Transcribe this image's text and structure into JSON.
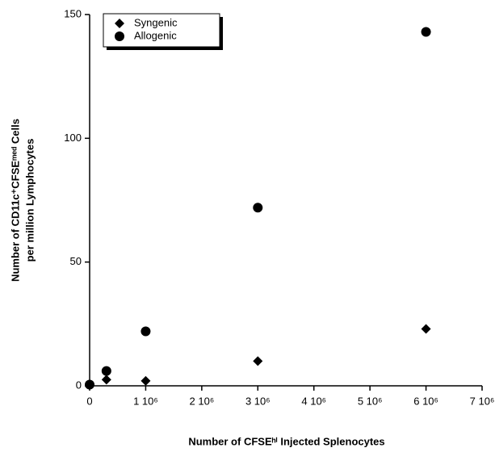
{
  "chart_data": {
    "type": "scatter",
    "xlabel": "Number of CFSEʰⁱ Injected Splenocytes",
    "ylabel": [
      "Number of CD11c⁺CFSEᵐᵉᵈ Cells",
      "per million Lymphocytes"
    ],
    "series": [
      {
        "name": "Syngenic",
        "marker": "diamond",
        "color": "#000000",
        "x": [
          300000,
          1000000,
          3000000,
          6000000
        ],
        "values": [
          2.5,
          2,
          10,
          23
        ]
      },
      {
        "name": "Allogenic",
        "marker": "circle",
        "color": "#000000",
        "x": [
          0,
          300000,
          1000000,
          3000000,
          6000000
        ],
        "values": [
          0.5,
          6,
          22,
          72,
          143
        ]
      }
    ],
    "xlim": [
      0,
      7000000
    ],
    "xticks": [
      0,
      {
        "value": 1000000,
        "label": "1 10⁶"
      },
      {
        "value": 2000000,
        "label": "2 10⁶"
      },
      {
        "value": 3000000,
        "label": "3 10⁶"
      },
      {
        "value": 4000000,
        "label": "4 10⁶"
      },
      {
        "value": 5000000,
        "label": "5 10⁶"
      },
      {
        "value": 6000000,
        "label": "6 10⁶"
      },
      {
        "value": 7000000,
        "label": "7 10⁶"
      }
    ],
    "ylim": [
      0,
      150
    ],
    "yticks": [
      0,
      50,
      100,
      150
    ],
    "legend": "upper left",
    "grid": false
  }
}
